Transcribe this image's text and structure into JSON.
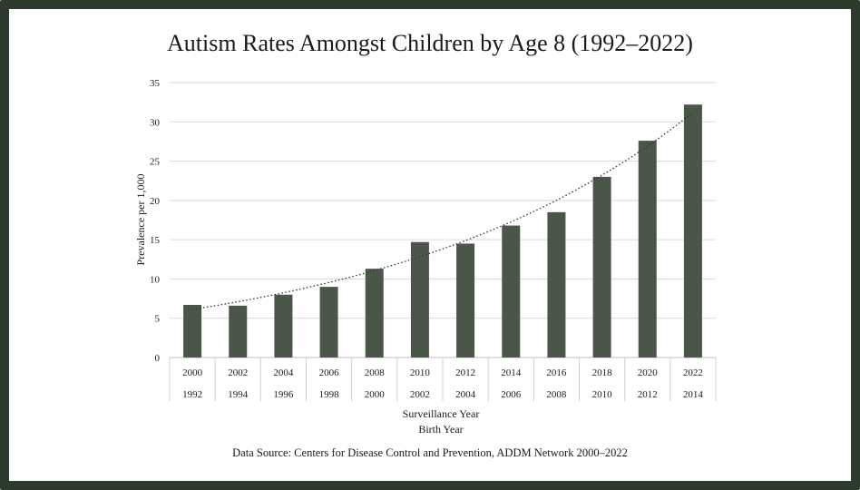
{
  "colors": {
    "frame": "#2c3b2c",
    "bar": "#4a5748",
    "grid": "#d9d9d9",
    "trend": "#333333"
  },
  "chart_data": {
    "type": "bar",
    "title": "Autism Rates Amongst Children by Age 8 (1992–2022)",
    "categories": [
      "2000",
      "2002",
      "2004",
      "2006",
      "2008",
      "2010",
      "2012",
      "2014",
      "2016",
      "2018",
      "2020",
      "2022"
    ],
    "secondary_categories": [
      "1992",
      "1994",
      "1996",
      "1998",
      "2000",
      "2002",
      "2004",
      "2006",
      "2008",
      "2010",
      "2012",
      "2014"
    ],
    "series": [
      {
        "name": "Prevalence per 1,000",
        "values": [
          6.7,
          6.6,
          8.0,
          9.0,
          11.3,
          14.7,
          14.5,
          16.8,
          18.5,
          23.0,
          27.6,
          32.2
        ]
      }
    ],
    "trendline": "exponential, dotted",
    "ylabel": "Prevalence per 1,000",
    "xlabel": "Surveillance Year",
    "xlabel_secondary": "Birth Year",
    "ylim": [
      0,
      35
    ],
    "yticks": [
      0,
      5,
      10,
      15,
      20,
      25,
      30,
      35
    ],
    "grid": true,
    "legend": "none"
  },
  "source": "Data Source: Centers for Disease Control and Prevention, ADDM Network 2000–2022"
}
